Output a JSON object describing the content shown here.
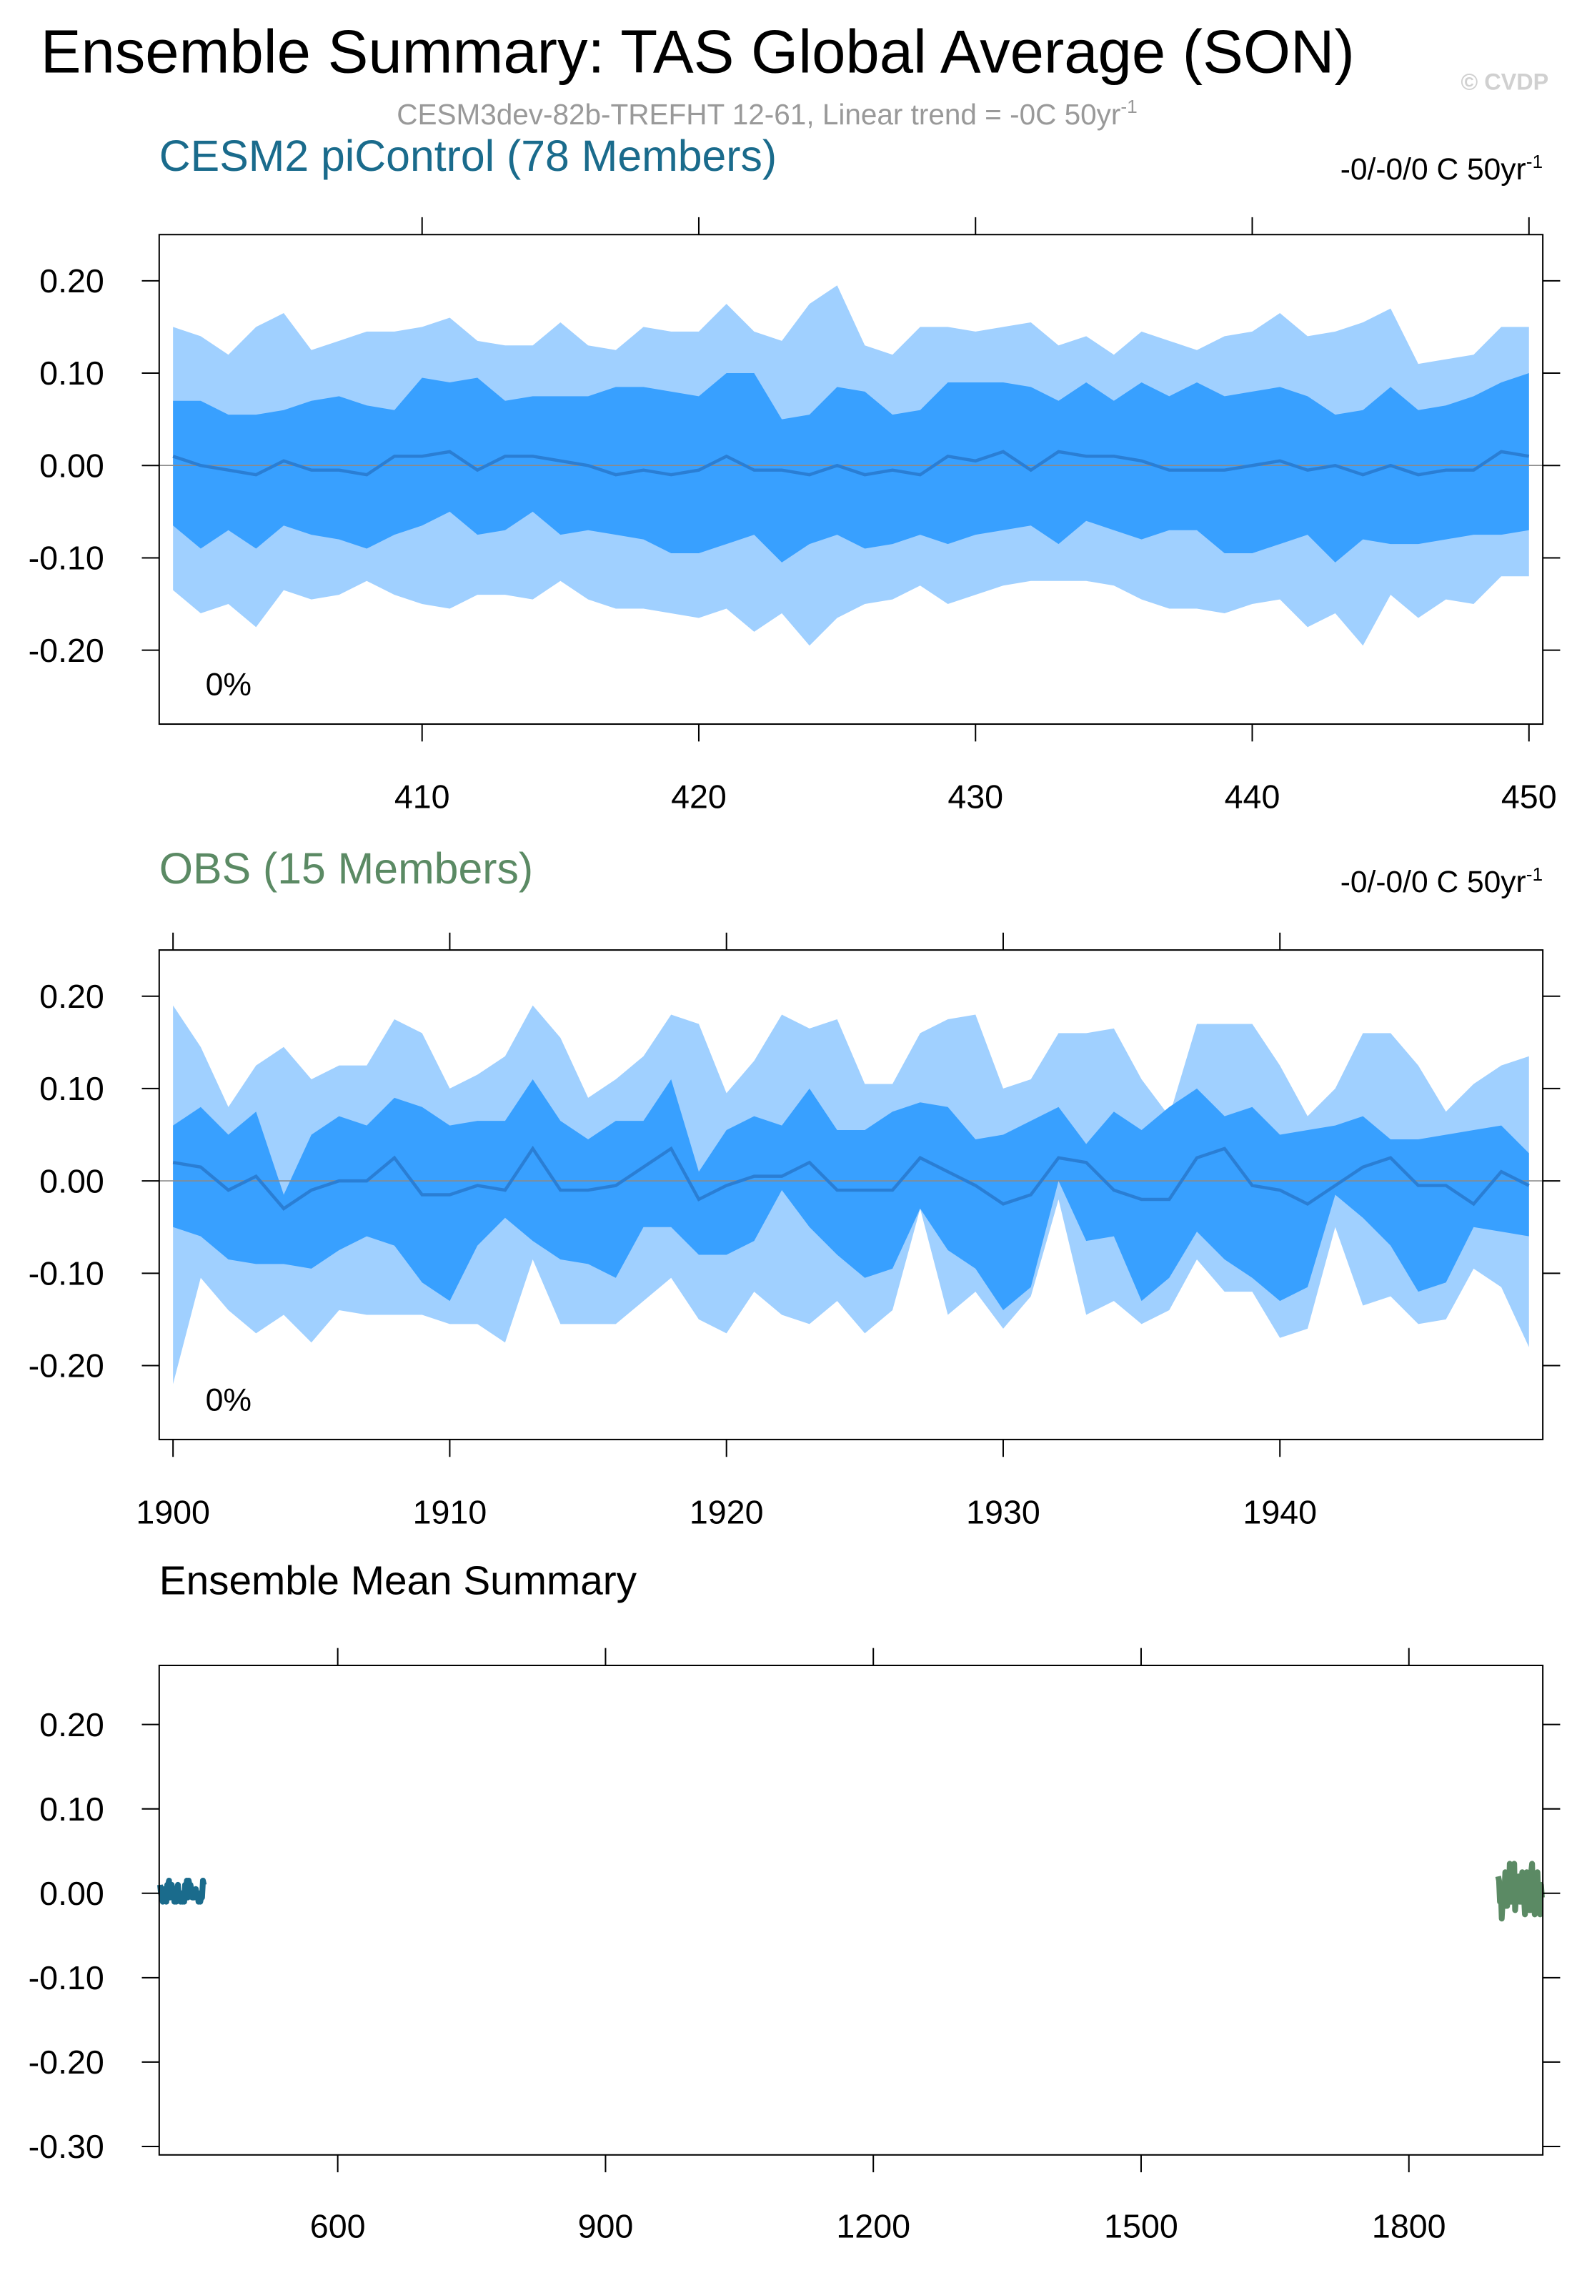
{
  "title": "Ensemble Summary: TAS Global Average (SON)",
  "subtitle": "CESM3dev-82b-TREFHT 12-61, Linear trend = -0C 50yr",
  "subtitle_sup": "-1",
  "watermark": "© CVDP",
  "chart_data": [
    {
      "type": "band",
      "title": "CESM2 piControl (78 Members)",
      "title_color": "#1a6b8c",
      "trend_label": "-0/-0/0 C 50yr",
      "trend_sup": "-1",
      "annotation": "0%",
      "zero_line": true,
      "x": [
        401,
        402,
        403,
        404,
        405,
        406,
        407,
        408,
        409,
        410,
        411,
        412,
        413,
        414,
        415,
        416,
        417,
        418,
        419,
        420,
        421,
        422,
        423,
        424,
        425,
        426,
        427,
        428,
        429,
        430,
        431,
        432,
        433,
        434,
        435,
        436,
        437,
        438,
        439,
        440,
        441,
        442,
        443,
        444,
        445,
        446,
        447,
        448,
        449,
        450
      ],
      "xlim": [
        400.5,
        450.5
      ],
      "xticks": [
        410,
        420,
        430,
        440,
        450
      ],
      "ylim": [
        -0.28,
        0.25
      ],
      "yticks": [
        {
          "value": 0.2,
          "label": "0.20"
        },
        {
          "value": 0.1,
          "label": "0.10"
        },
        {
          "value": 0,
          "label": "0.00"
        },
        {
          "value": -0.1,
          "label": "-0.10"
        },
        {
          "value": -0.2,
          "label": "-0.20"
        }
      ],
      "bands": [
        {
          "color": "#a0d0ff",
          "upper": [
            0.15,
            0.14,
            0.12,
            0.15,
            0.165,
            0.125,
            0.135,
            0.145,
            0.145,
            0.15,
            0.16,
            0.135,
            0.13,
            0.13,
            0.155,
            0.13,
            0.125,
            0.15,
            0.145,
            0.145,
            0.175,
            0.145,
            0.135,
            0.175,
            0.195,
            0.13,
            0.12,
            0.15,
            0.15,
            0.145,
            0.15,
            0.155,
            0.13,
            0.14,
            0.12,
            0.145,
            0.135,
            0.125,
            0.14,
            0.145,
            0.165,
            0.14,
            0.145,
            0.155,
            0.17,
            0.11,
            0.115,
            0.12,
            0.15,
            0.15
          ],
          "lower": [
            -0.135,
            -0.16,
            -0.15,
            -0.175,
            -0.135,
            -0.145,
            -0.14,
            -0.125,
            -0.14,
            -0.15,
            -0.155,
            -0.14,
            -0.14,
            -0.145,
            -0.125,
            -0.145,
            -0.155,
            -0.155,
            -0.16,
            -0.165,
            -0.155,
            -0.18,
            -0.16,
            -0.195,
            -0.165,
            -0.15,
            -0.145,
            -0.13,
            -0.15,
            -0.14,
            -0.13,
            -0.125,
            -0.125,
            -0.125,
            -0.13,
            -0.145,
            -0.155,
            -0.155,
            -0.16,
            -0.15,
            -0.145,
            -0.175,
            -0.16,
            -0.195,
            -0.14,
            -0.165,
            -0.145,
            -0.15,
            -0.12,
            -0.12
          ]
        },
        {
          "color": "#38a0ff",
          "upper": [
            0.07,
            0.07,
            0.055,
            0.055,
            0.06,
            0.07,
            0.075,
            0.065,
            0.06,
            0.095,
            0.09,
            0.095,
            0.07,
            0.075,
            0.075,
            0.075,
            0.085,
            0.085,
            0.08,
            0.075,
            0.1,
            0.1,
            0.05,
            0.055,
            0.085,
            0.08,
            0.055,
            0.06,
            0.09,
            0.09,
            0.09,
            0.085,
            0.07,
            0.09,
            0.07,
            0.09,
            0.075,
            0.09,
            0.075,
            0.08,
            0.085,
            0.075,
            0.055,
            0.06,
            0.085,
            0.06,
            0.065,
            0.075,
            0.09,
            0.1
          ],
          "lower": [
            -0.065,
            -0.09,
            -0.07,
            -0.09,
            -0.065,
            -0.075,
            -0.08,
            -0.09,
            -0.075,
            -0.065,
            -0.05,
            -0.075,
            -0.07,
            -0.05,
            -0.075,
            -0.07,
            -0.075,
            -0.08,
            -0.095,
            -0.095,
            -0.085,
            -0.075,
            -0.105,
            -0.085,
            -0.075,
            -0.09,
            -0.085,
            -0.075,
            -0.085,
            -0.075,
            -0.07,
            -0.065,
            -0.085,
            -0.06,
            -0.07,
            -0.08,
            -0.07,
            -0.07,
            -0.095,
            -0.095,
            -0.085,
            -0.075,
            -0.105,
            -0.08,
            -0.085,
            -0.085,
            -0.08,
            -0.075,
            -0.075,
            -0.07
          ]
        }
      ],
      "mean": {
        "color": "#2a7ed4",
        "values": [
          0.01,
          0.0,
          -0.005,
          -0.01,
          0.005,
          -0.005,
          -0.005,
          -0.01,
          0.01,
          0.01,
          0.015,
          -0.005,
          0.01,
          0.01,
          0.005,
          0.0,
          -0.01,
          -0.005,
          -0.01,
          -0.005,
          0.01,
          -0.005,
          -0.005,
          -0.01,
          0.0,
          -0.01,
          -0.005,
          -0.01,
          0.01,
          0.005,
          0.015,
          -0.005,
          0.015,
          0.01,
          0.01,
          0.005,
          -0.005,
          -0.005,
          -0.005,
          0.0,
          0.005,
          -0.005,
          0.0,
          -0.01,
          0.0,
          -0.01,
          -0.005,
          -0.005,
          0.015,
          0.01
        ]
      }
    },
    {
      "type": "band",
      "title": "OBS (15 Members)",
      "title_color": "#5b8a64",
      "trend_label": "-0/-0/0 C 50yr",
      "trend_sup": "-1",
      "annotation": "0%",
      "zero_line": true,
      "x": [
        1900,
        1901,
        1902,
        1903,
        1904,
        1905,
        1906,
        1907,
        1908,
        1909,
        1910,
        1911,
        1912,
        1913,
        1914,
        1915,
        1916,
        1917,
        1918,
        1919,
        1920,
        1921,
        1922,
        1923,
        1924,
        1925,
        1926,
        1927,
        1928,
        1929,
        1930,
        1931,
        1932,
        1933,
        1934,
        1935,
        1936,
        1937,
        1938,
        1939,
        1940,
        1941,
        1942,
        1943,
        1944,
        1945,
        1946,
        1947,
        1948,
        1949
      ],
      "xlim": [
        1899.5,
        1949.5
      ],
      "xticks": [
        1900,
        1910,
        1920,
        1930,
        1940
      ],
      "ylim": [
        -0.28,
        0.25
      ],
      "yticks": [
        {
          "value": 0.2,
          "label": "0.20"
        },
        {
          "value": 0.1,
          "label": "0.10"
        },
        {
          "value": 0,
          "label": "0.00"
        },
        {
          "value": -0.1,
          "label": "-0.10"
        },
        {
          "value": -0.2,
          "label": "-0.20"
        }
      ],
      "bands": [
        {
          "color": "#a0d0ff",
          "upper": [
            0.19,
            0.145,
            0.08,
            0.125,
            0.145,
            0.11,
            0.125,
            0.125,
            0.175,
            0.16,
            0.1,
            0.115,
            0.135,
            0.19,
            0.155,
            0.09,
            0.11,
            0.135,
            0.18,
            0.17,
            0.095,
            0.13,
            0.18,
            0.165,
            0.175,
            0.105,
            0.105,
            0.16,
            0.175,
            0.18,
            0.1,
            0.11,
            0.16,
            0.16,
            0.165,
            0.11,
            0.07,
            0.17,
            0.17,
            0.17,
            0.125,
            0.07,
            0.1,
            0.16,
            0.16,
            0.125,
            0.075,
            0.105,
            0.125,
            0.135
          ],
          "lower": [
            -0.22,
            -0.105,
            -0.14,
            -0.165,
            -0.145,
            -0.175,
            -0.14,
            -0.145,
            -0.145,
            -0.145,
            -0.155,
            -0.155,
            -0.175,
            -0.085,
            -0.155,
            -0.155,
            -0.155,
            -0.13,
            -0.105,
            -0.15,
            -0.165,
            -0.12,
            -0.145,
            -0.155,
            -0.13,
            -0.165,
            -0.14,
            -0.03,
            -0.145,
            -0.12,
            -0.16,
            -0.125,
            -0.02,
            -0.145,
            -0.13,
            -0.155,
            -0.14,
            -0.085,
            -0.12,
            -0.12,
            -0.17,
            -0.16,
            -0.05,
            -0.135,
            -0.125,
            -0.155,
            -0.15,
            -0.095,
            -0.115,
            -0.18
          ]
        },
        {
          "color": "#38a0ff",
          "upper": [
            0.06,
            0.08,
            0.05,
            0.075,
            -0.015,
            0.05,
            0.07,
            0.06,
            0.09,
            0.08,
            0.06,
            0.065,
            0.065,
            0.11,
            0.065,
            0.045,
            0.065,
            0.065,
            0.11,
            0.01,
            0.055,
            0.07,
            0.06,
            0.1,
            0.055,
            0.055,
            0.075,
            0.085,
            0.08,
            0.045,
            0.05,
            0.065,
            0.08,
            0.04,
            0.075,
            0.055,
            0.08,
            0.1,
            0.07,
            0.08,
            0.05,
            0.055,
            0.06,
            0.07,
            0.045,
            0.045,
            0.05,
            0.055,
            0.06,
            0.03
          ],
          "lower": [
            -0.05,
            -0.06,
            -0.085,
            -0.09,
            -0.09,
            -0.095,
            -0.075,
            -0.06,
            -0.07,
            -0.11,
            -0.13,
            -0.07,
            -0.04,
            -0.065,
            -0.085,
            -0.09,
            -0.105,
            -0.05,
            -0.05,
            -0.08,
            -0.08,
            -0.065,
            -0.01,
            -0.05,
            -0.08,
            -0.105,
            -0.095,
            -0.03,
            -0.075,
            -0.095,
            -0.14,
            -0.115,
            0.0,
            -0.065,
            -0.06,
            -0.13,
            -0.105,
            -0.055,
            -0.085,
            -0.105,
            -0.13,
            -0.115,
            -0.015,
            -0.04,
            -0.07,
            -0.12,
            -0.11,
            -0.05,
            -0.055,
            -0.06
          ]
        }
      ],
      "mean": {
        "color": "#2a7ed4",
        "values": [
          0.02,
          0.015,
          -0.01,
          0.005,
          -0.03,
          -0.01,
          0.0,
          0.0,
          0.025,
          -0.015,
          -0.015,
          -0.005,
          -0.01,
          0.035,
          -0.01,
          -0.01,
          -0.005,
          0.015,
          0.035,
          -0.02,
          -0.005,
          0.005,
          0.005,
          0.02,
          -0.01,
          -0.01,
          -0.01,
          0.025,
          0.01,
          -0.005,
          -0.025,
          -0.015,
          0.025,
          0.02,
          -0.01,
          -0.02,
          -0.02,
          0.025,
          0.035,
          -0.005,
          -0.01,
          -0.025,
          -0.005,
          0.015,
          0.025,
          -0.005,
          -0.005,
          -0.025,
          0.01,
          -0.005
        ]
      }
    },
    {
      "type": "line",
      "title": "Ensemble Mean Summary",
      "xlim": [
        400,
        1950
      ],
      "xticks": [
        600,
        900,
        1200,
        1500,
        1800
      ],
      "ylim": [
        -0.31,
        0.27
      ],
      "yticks": [
        {
          "value": 0.2,
          "label": "0.20"
        },
        {
          "value": 0.1,
          "label": "0.10"
        },
        {
          "value": 0,
          "label": "0.00"
        },
        {
          "value": -0.1,
          "label": "-0.10"
        },
        {
          "value": -0.2,
          "label": "-0.20"
        },
        {
          "value": -0.3,
          "label": "-0.30"
        }
      ],
      "series": [
        {
          "color": "#1a6b8c",
          "x": [
            401,
            402,
            403,
            404,
            405,
            406,
            407,
            408,
            409,
            410,
            411,
            412,
            413,
            414,
            415,
            416,
            417,
            418,
            419,
            420,
            421,
            422,
            423,
            424,
            425,
            426,
            427,
            428,
            429,
            430,
            431,
            432,
            433,
            434,
            435,
            436,
            437,
            438,
            439,
            440,
            441,
            442,
            443,
            444,
            445,
            446,
            447,
            448,
            449,
            450
          ],
          "values": [
            0.01,
            0.0,
            -0.005,
            -0.01,
            0.005,
            -0.005,
            -0.005,
            -0.01,
            0.01,
            0.01,
            0.015,
            -0.005,
            0.01,
            0.01,
            0.005,
            0.0,
            -0.01,
            -0.005,
            -0.01,
            -0.005,
            0.01,
            -0.005,
            -0.005,
            -0.01,
            0.0,
            -0.01,
            -0.005,
            -0.01,
            0.01,
            0.005,
            0.015,
            -0.005,
            0.015,
            0.01,
            0.01,
            0.005,
            -0.005,
            -0.005,
            -0.005,
            0.0,
            0.005,
            -0.005,
            0.0,
            -0.01,
            0.0,
            -0.01,
            -0.005,
            -0.005,
            0.015,
            0.01
          ]
        },
        {
          "color": "#5b8a64",
          "x": [
            1900,
            1901,
            1902,
            1903,
            1904,
            1905,
            1906,
            1907,
            1908,
            1909,
            1910,
            1911,
            1912,
            1913,
            1914,
            1915,
            1916,
            1917,
            1918,
            1919,
            1920,
            1921,
            1922,
            1923,
            1924,
            1925,
            1926,
            1927,
            1928,
            1929,
            1930,
            1931,
            1932,
            1933,
            1934,
            1935,
            1936,
            1937,
            1938,
            1939,
            1940,
            1941,
            1942,
            1943,
            1944,
            1945,
            1946,
            1947,
            1948,
            1949
          ],
          "values": [
            0.02,
            0.015,
            -0.01,
            0.005,
            -0.03,
            -0.01,
            0.0,
            0.0,
            0.025,
            -0.015,
            -0.015,
            -0.005,
            -0.01,
            0.035,
            -0.01,
            -0.01,
            -0.005,
            0.015,
            0.035,
            -0.02,
            -0.005,
            0.005,
            0.005,
            0.02,
            -0.01,
            -0.01,
            -0.01,
            0.025,
            0.01,
            -0.005,
            -0.025,
            -0.015,
            0.025,
            0.02,
            -0.01,
            -0.02,
            -0.02,
            0.025,
            0.035,
            -0.005,
            -0.01,
            -0.025,
            -0.005,
            0.015,
            0.025,
            -0.005,
            -0.005,
            -0.025,
            0.01,
            -0.005
          ]
        }
      ]
    }
  ]
}
